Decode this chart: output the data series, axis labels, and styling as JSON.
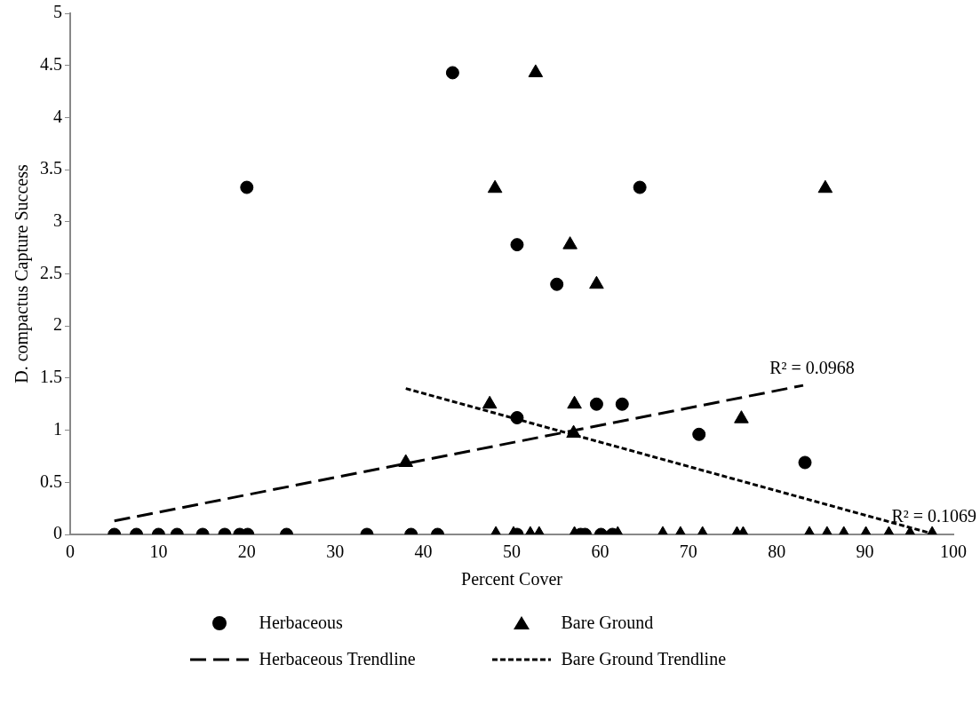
{
  "chart_data": {
    "type": "scatter",
    "xlabel": "Percent Cover",
    "ylabel": "D. compactus Capture Success",
    "xlim": [
      0,
      100
    ],
    "xticks": [
      0,
      10,
      20,
      30,
      40,
      50,
      60,
      70,
      80,
      90,
      100
    ],
    "ylim": [
      0,
      5
    ],
    "yticks": [
      0,
      0.5,
      1,
      1.5,
      2,
      2.5,
      3,
      3.5,
      4,
      4.5,
      5
    ],
    "grid": false,
    "legend": "bottom",
    "series": [
      {
        "name": "Herbaceous",
        "type": "scatter",
        "marker": "circle",
        "color": "#000000",
        "x": [
          5.0,
          7.5,
          10.0,
          12.1,
          15.0,
          17.5,
          19.2,
          20.1,
          24.5,
          33.6,
          38.6,
          41.6,
          50.6,
          57.8,
          58.3,
          60.1,
          61.4,
          43.3,
          20.0,
          50.6,
          55.1,
          64.5,
          59.6,
          62.5,
          50.6,
          71.2,
          83.2
        ],
        "values": [
          0,
          0,
          0,
          0,
          0,
          0,
          0,
          0,
          0,
          0,
          0,
          0,
          0,
          0,
          0,
          0,
          0,
          4.43,
          3.33,
          2.78,
          2.4,
          3.33,
          1.25,
          1.25,
          1.12,
          0.96,
          0.69
        ]
      },
      {
        "name": "Bare Ground",
        "type": "scatter",
        "marker": "triangle",
        "color": "#000000",
        "x": [
          48.2,
          50.2,
          52.1,
          53.1,
          57.1,
          62.0,
          67.1,
          69.1,
          71.6,
          75.5,
          76.2,
          83.7,
          85.7,
          87.6,
          90.1,
          92.7,
          95.1,
          97.6,
          52.7,
          48.1,
          85.5,
          56.6,
          59.6,
          47.5,
          57.1,
          38.0,
          57.0,
          76.0
        ],
        "values": [
          0,
          0,
          0,
          0,
          0,
          0,
          0,
          0,
          0,
          0,
          0,
          0,
          0,
          0,
          0,
          0,
          0,
          0,
          4.43,
          3.32,
          3.32,
          2.78,
          2.4,
          1.25,
          1.25,
          0.69,
          0.97,
          1.11
        ]
      },
      {
        "name": "Herbaceous Trendline",
        "type": "line",
        "line_style": "dashed",
        "marker": "none",
        "color": "#000000",
        "x": [
          5,
          83
        ],
        "values": [
          0.13,
          1.43
        ]
      },
      {
        "name": "Bare Ground Trendline",
        "type": "line",
        "line_style": "dotted",
        "marker": "none",
        "color": "#000000",
        "x": [
          38,
          97.5
        ],
        "values": [
          1.4,
          0.01
        ]
      }
    ],
    "annotations": [
      {
        "text": "R² = 0.0968",
        "x": 83,
        "y": 1.43
      },
      {
        "text": "R² = 0.1069",
        "x": 97.5,
        "y": 0.01
      }
    ]
  }
}
